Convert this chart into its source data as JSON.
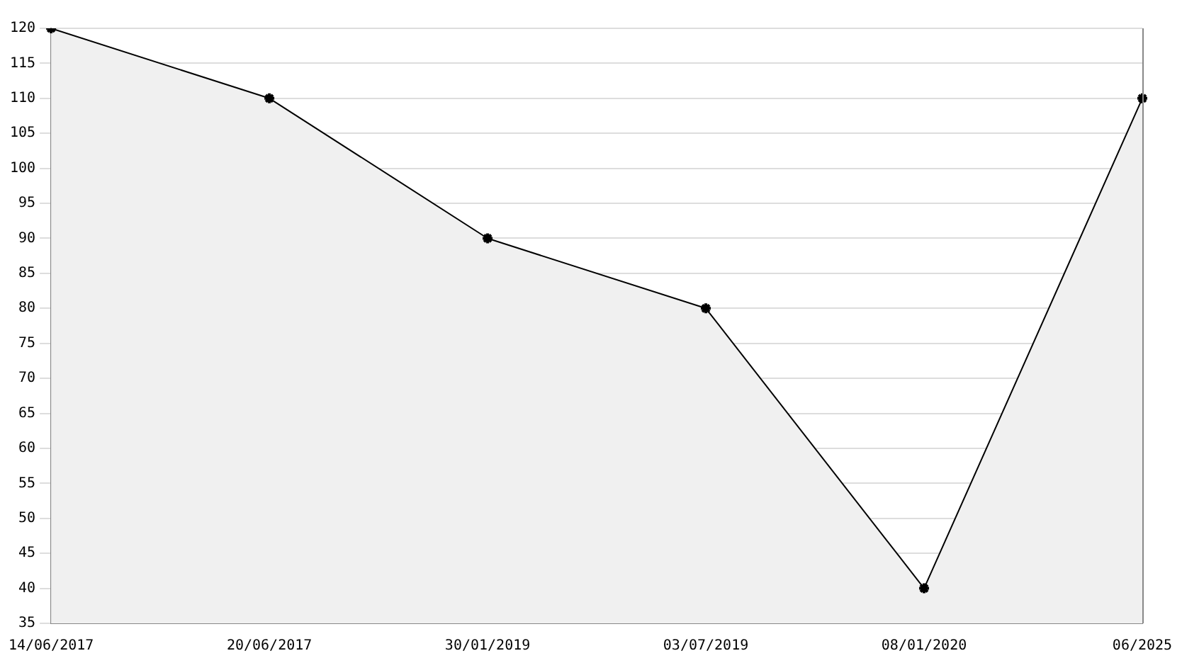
{
  "chart_data": {
    "type": "area",
    "categories": [
      "14/06/2017",
      "20/06/2017",
      "30/01/2019",
      "03/07/2019",
      "08/01/2020",
      "06/2025"
    ],
    "series": [
      {
        "color": "#000000",
        "values": [
          120,
          110,
          90,
          80,
          40,
          110
        ]
      }
    ],
    "ylim": [
      35,
      120
    ],
    "yticks": [
      35,
      40,
      45,
      50,
      55,
      60,
      65,
      70,
      75,
      80,
      85,
      90,
      95,
      100,
      105,
      110,
      115,
      120
    ],
    "grid": "y",
    "legend": false,
    "marker": "cross",
    "line_style": "solid"
  }
}
